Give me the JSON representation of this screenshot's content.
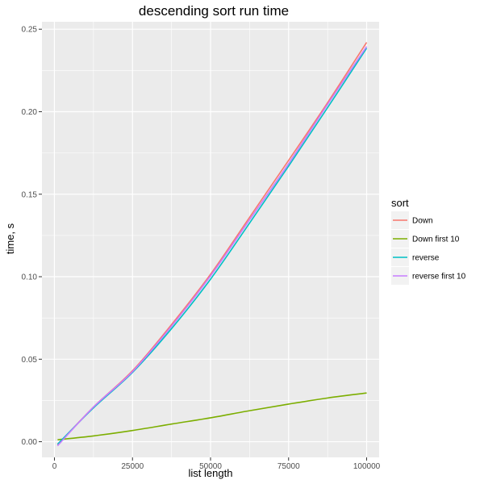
{
  "chart_data": {
    "type": "line",
    "title": "descending sort run time",
    "xlabel": "list length",
    "ylabel": "time, s",
    "xlim": [
      -4000,
      104000
    ],
    "ylim": [
      -0.0095,
      0.2545
    ],
    "x_ticks": [
      0,
      25000,
      50000,
      75000,
      100000
    ],
    "x_tick_labels": [
      "0",
      "25000",
      "50000",
      "75000",
      "100000"
    ],
    "y_ticks": [
      0,
      0.05,
      0.1,
      0.15,
      0.2,
      0.25
    ],
    "y_tick_labels": [
      "0.00",
      "0.05",
      "0.10",
      "0.15",
      "0.20",
      "0.25"
    ],
    "grid": true,
    "legend_title": "sort",
    "legend_position": "right",
    "x": [
      1000,
      12500,
      25000,
      37500,
      50000,
      62500,
      75000,
      87500,
      100000
    ],
    "series": [
      {
        "name": "Down",
        "color": "#F8766D",
        "values": [
          -0.002,
          0.021,
          0.043,
          0.071,
          0.1015,
          0.136,
          0.1705,
          0.2055,
          0.242
        ]
      },
      {
        "name": "Down first 10",
        "color": "#7CAE00",
        "values": [
          0.0012,
          0.0035,
          0.0068,
          0.0107,
          0.0145,
          0.0188,
          0.0228,
          0.0265,
          0.0295
        ]
      },
      {
        "name": "reverse",
        "color": "#00BFC4",
        "values": [
          -0.0015,
          0.0205,
          0.042,
          0.0685,
          0.0985,
          0.1325,
          0.167,
          0.2025,
          0.2385
        ]
      },
      {
        "name": "reverse first 10",
        "color": "#C77CFF",
        "values": [
          -0.0025,
          0.021,
          0.0425,
          0.07,
          0.1005,
          0.1345,
          0.1685,
          0.2045,
          0.2395
        ]
      }
    ]
  }
}
